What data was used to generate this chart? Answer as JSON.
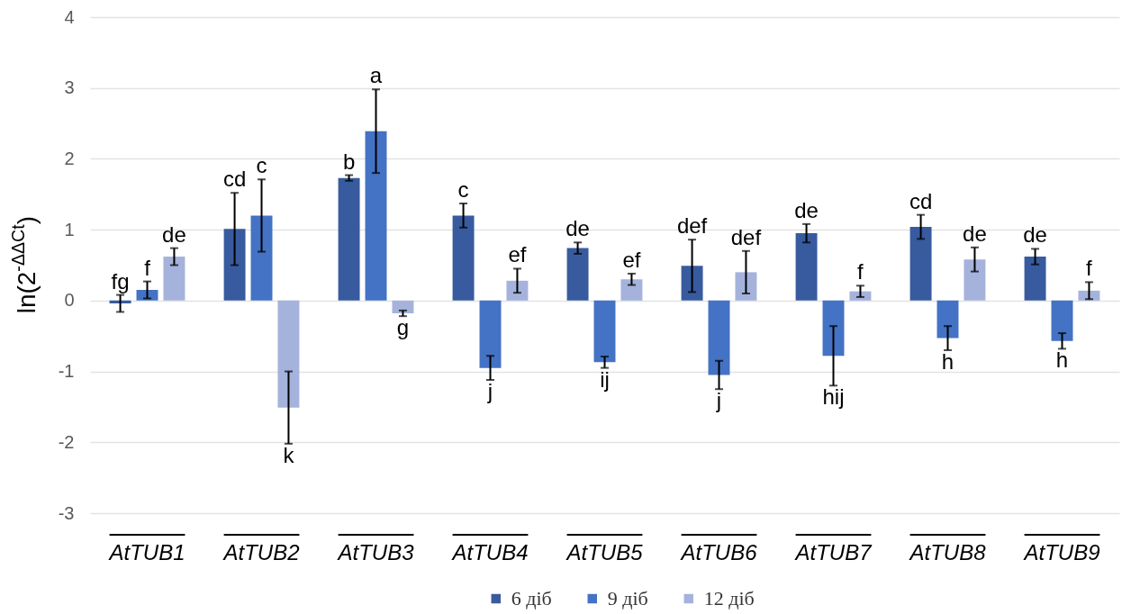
{
  "chart_data": {
    "type": "bar",
    "ylabel": "ln(2$^{-ΔΔCt}$)",
    "categories": [
      "AtTUB1",
      "AtTUB2",
      "AtTUB3",
      "AtTUB4",
      "AtTUB5",
      "AtTUB6",
      "AtTUB7",
      "AtTUB8",
      "AtTUB9"
    ],
    "series": [
      {
        "name": "6 діб",
        "color": "#375b9e",
        "values": [
          -0.04,
          1.01,
          1.73,
          1.2,
          0.74,
          0.49,
          0.95,
          1.04,
          0.62
        ],
        "errors": [
          0.12,
          0.51,
          0.04,
          0.17,
          0.08,
          0.37,
          0.13,
          0.17,
          0.11
        ],
        "value_labels": [
          "fg",
          "cd",
          "b",
          "c",
          "de",
          "def",
          "de",
          "cd",
          "de"
        ]
      },
      {
        "name": "9 діб",
        "color": "#4472c4",
        "values": [
          0.15,
          1.2,
          2.39,
          -0.95,
          -0.87,
          -1.05,
          -0.78,
          -0.53,
          -0.57
        ],
        "errors": [
          0.12,
          0.51,
          0.59,
          0.17,
          0.08,
          0.2,
          0.42,
          0.17,
          0.11
        ],
        "value_labels": [
          "f",
          "c",
          "a",
          "j",
          "ij",
          "j",
          "hij",
          "h",
          "h"
        ]
      },
      {
        "name": "12 діб",
        "color": "#a5b3dc",
        "values": [
          0.62,
          -1.51,
          -0.18,
          0.28,
          0.3,
          0.4,
          0.13,
          0.58,
          0.14
        ],
        "errors": [
          0.12,
          0.51,
          0.04,
          0.17,
          0.08,
          0.3,
          0.08,
          0.17,
          0.12
        ],
        "value_labels": [
          "de",
          "k",
          "g",
          "ef",
          "ef",
          "def",
          "f",
          "de",
          "f"
        ]
      }
    ],
    "ylim": [
      -3,
      4
    ],
    "yticks": [
      -3,
      -2,
      -1,
      0,
      1,
      2,
      3,
      4
    ],
    "grid": "y",
    "legend": "bottom"
  }
}
